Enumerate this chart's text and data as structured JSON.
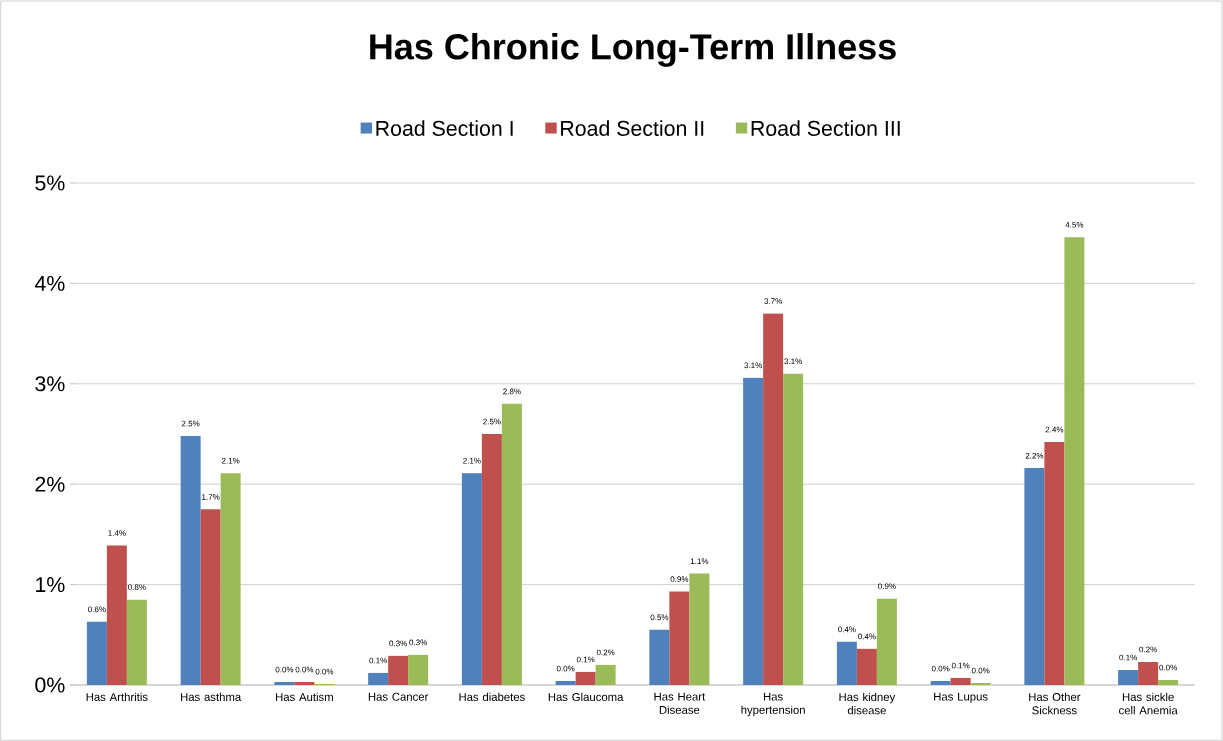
{
  "chart_data": {
    "type": "bar",
    "title": "Has Chronic Long-Term Illness",
    "categories": [
      "Has Arthritis",
      "Has asthma",
      "Has Autism",
      "Has Cancer",
      "Has diabetes",
      "Has Glaucoma",
      "Has Heart Disease",
      "Has hypertension",
      "Has kidney disease",
      "Has Lupus",
      "Has Other Sickness",
      "Has sickle cell Anemia"
    ],
    "series": [
      {
        "name": "Road Section I",
        "color": "#4f81bd",
        "values": [
          0.63,
          2.48,
          0.03,
          0.12,
          2.11,
          0.04,
          0.55,
          3.06,
          0.43,
          0.04,
          2.16,
          0.15
        ],
        "value_labels": [
          "0.6%",
          "2.5%",
          "0.0%",
          "0.1%",
          "2.1%",
          "0.0%",
          "0.5%",
          "3.1%",
          "0.4%",
          "0.0%",
          "2.2%",
          "0.1%"
        ]
      },
      {
        "name": "Road Section II",
        "color": "#c0504d",
        "values": [
          1.39,
          1.75,
          0.03,
          0.29,
          2.5,
          0.13,
          0.93,
          3.7,
          0.36,
          0.07,
          2.42,
          0.23
        ],
        "value_labels": [
          "1.4%",
          "1.7%",
          "0.0%",
          "0.3%",
          "2.5%",
          "0.1%",
          "0.9%",
          "3.7%",
          "0.4%",
          "0.1%",
          "2.4%",
          "0.2%"
        ]
      },
      {
        "name": "Road Section III",
        "color": "#9bbb59",
        "values": [
          0.85,
          2.11,
          0.01,
          0.3,
          2.8,
          0.2,
          1.11,
          3.1,
          0.86,
          0.02,
          4.46,
          0.05
        ],
        "value_labels": [
          "0.8%",
          "2.1%",
          "0.0%",
          "0.3%",
          "2.8%",
          "0.2%",
          "1.1%",
          "3.1%",
          "0.9%",
          "0.0%",
          "4.5%",
          "0.0%"
        ]
      }
    ],
    "ylim": [
      0,
      5
    ],
    "yticks": [
      {
        "value": 0,
        "label": "0%"
      },
      {
        "value": 1,
        "label": "1%"
      },
      {
        "value": 2,
        "label": "2%"
      },
      {
        "value": 3,
        "label": "3%"
      },
      {
        "value": 4,
        "label": "4%"
      },
      {
        "value": 5,
        "label": "5%"
      }
    ],
    "grid": "y",
    "legend": "top"
  }
}
